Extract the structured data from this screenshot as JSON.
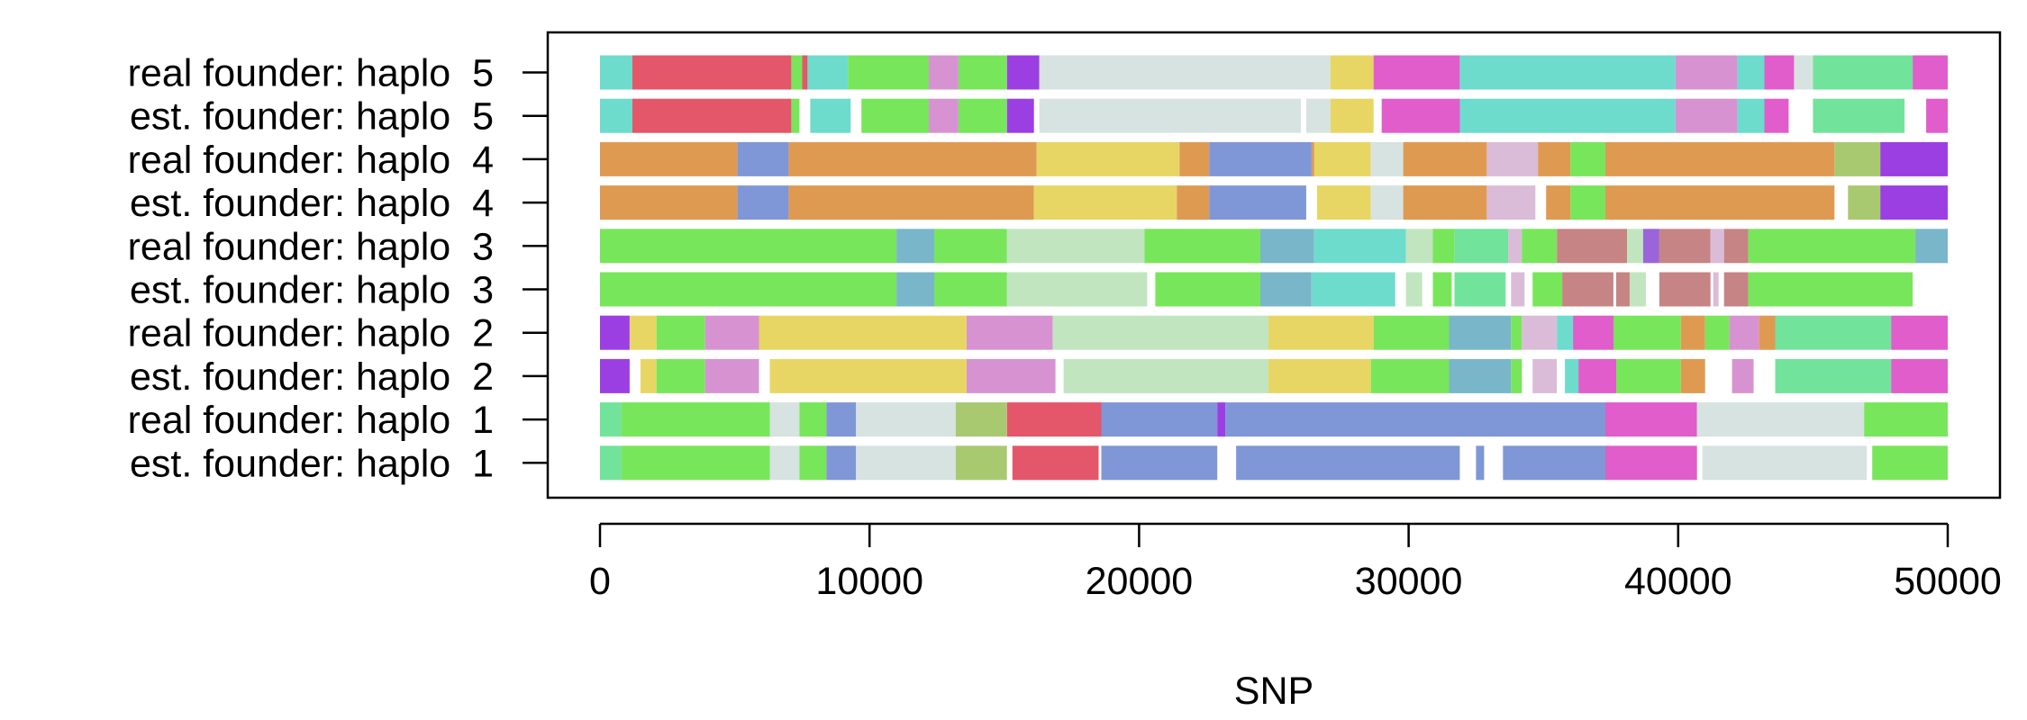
{
  "chart_data": {
    "type": "bar",
    "xlabel": "SNP",
    "xlim": [
      0,
      50000
    ],
    "xticks": [
      "0",
      "10000",
      "20000",
      "30000",
      "40000",
      "50000"
    ],
    "grid": false,
    "rows": [
      {
        "label": "real founder: haplo  5",
        "segments": [
          [
            0,
            1200,
            "#6ddccc"
          ],
          [
            1200,
            7100,
            "#e4566a"
          ],
          [
            7100,
            7500,
            "#78e65a"
          ],
          [
            7500,
            7700,
            "#e4566a"
          ],
          [
            7700,
            9200,
            "#6ddccc"
          ],
          [
            9200,
            12200,
            "#78e65a"
          ],
          [
            12200,
            13300,
            "#d793d1"
          ],
          [
            13300,
            15100,
            "#78e65a"
          ],
          [
            15100,
            16300,
            "#9b3fe3"
          ],
          [
            16300,
            27100,
            "#d6e3e0"
          ],
          [
            27100,
            28700,
            "#e8d664"
          ],
          [
            28700,
            31900,
            "#e05dcb"
          ],
          [
            31900,
            39900,
            "#6ddccc"
          ],
          [
            39900,
            42200,
            "#d793d1"
          ],
          [
            42200,
            43200,
            "#6ddccc"
          ],
          [
            43200,
            44300,
            "#e05dcb"
          ],
          [
            44300,
            45000,
            "#d6e3e0"
          ],
          [
            45000,
            48700,
            "#72e39b"
          ],
          [
            48700,
            50000,
            "#e05dcb"
          ]
        ]
      },
      {
        "label": "est. founder: haplo  5",
        "segments": [
          [
            0,
            1200,
            "#6ddccc"
          ],
          [
            1200,
            7100,
            "#e4566a"
          ],
          [
            7100,
            7400,
            "#78e65a"
          ],
          [
            7800,
            9300,
            "#6ddccc"
          ],
          [
            9700,
            12200,
            "#78e65a"
          ],
          [
            12200,
            13300,
            "#d793d1"
          ],
          [
            13300,
            15100,
            "#78e65a"
          ],
          [
            15100,
            16100,
            "#9b3fe3"
          ],
          [
            16300,
            26000,
            "#d6e3e0"
          ],
          [
            26200,
            27100,
            "#d6e3e0"
          ],
          [
            27100,
            28700,
            "#e8d664"
          ],
          [
            29000,
            31900,
            "#e05dcb"
          ],
          [
            31900,
            39900,
            "#6ddccc"
          ],
          [
            39900,
            42200,
            "#d793d1"
          ],
          [
            42200,
            43200,
            "#6ddccc"
          ],
          [
            43200,
            44100,
            "#e05dcb"
          ],
          [
            45000,
            48400,
            "#72e39b"
          ],
          [
            49200,
            50000,
            "#e05dcb"
          ]
        ]
      },
      {
        "label": "real founder: haplo  4",
        "segments": [
          [
            0,
            5100,
            "#df9a52"
          ],
          [
            5100,
            7000,
            "#7f97d6"
          ],
          [
            7000,
            16200,
            "#df9a52"
          ],
          [
            16200,
            21500,
            "#e8d664"
          ],
          [
            21500,
            22600,
            "#df9a52"
          ],
          [
            22600,
            26400,
            "#7f97d6"
          ],
          [
            26400,
            26500,
            "#df9a52"
          ],
          [
            26500,
            28600,
            "#e8d664"
          ],
          [
            28600,
            29800,
            "#d6e3e0"
          ],
          [
            29800,
            32900,
            "#df9a52"
          ],
          [
            32900,
            34800,
            "#dbbcd8"
          ],
          [
            34800,
            36000,
            "#df9a52"
          ],
          [
            36000,
            37300,
            "#78e65a"
          ],
          [
            37300,
            45800,
            "#df9a52"
          ],
          [
            45800,
            47500,
            "#a9c970"
          ],
          [
            47500,
            50000,
            "#9b3fe3"
          ]
        ]
      },
      {
        "label": "est. founder: haplo  4",
        "segments": [
          [
            0,
            5100,
            "#df9a52"
          ],
          [
            5100,
            7000,
            "#7f97d6"
          ],
          [
            7000,
            16100,
            "#df9a52"
          ],
          [
            16100,
            21400,
            "#e8d664"
          ],
          [
            21400,
            22600,
            "#df9a52"
          ],
          [
            22600,
            26200,
            "#7f97d6"
          ],
          [
            26600,
            28600,
            "#e8d664"
          ],
          [
            28600,
            29800,
            "#d6e3e0"
          ],
          [
            29800,
            32900,
            "#df9a52"
          ],
          [
            32900,
            34700,
            "#dbbcd8"
          ],
          [
            35100,
            36000,
            "#df9a52"
          ],
          [
            36000,
            37300,
            "#78e65a"
          ],
          [
            37300,
            45800,
            "#df9a52"
          ],
          [
            46300,
            47500,
            "#a9c970"
          ],
          [
            47500,
            50000,
            "#9b3fe3"
          ]
        ]
      },
      {
        "label": "real founder: haplo  3",
        "segments": [
          [
            0,
            11000,
            "#78e65a"
          ],
          [
            11000,
            12400,
            "#79b6c9"
          ],
          [
            12400,
            15100,
            "#78e65a"
          ],
          [
            15100,
            20200,
            "#c1e6bf"
          ],
          [
            20200,
            24500,
            "#78e65a"
          ],
          [
            24500,
            26500,
            "#79b6c9"
          ],
          [
            26500,
            29900,
            "#6ddccc"
          ],
          [
            29900,
            30900,
            "#c1e6bf"
          ],
          [
            30900,
            31700,
            "#78e65a"
          ],
          [
            31700,
            33700,
            "#72e39b"
          ],
          [
            33700,
            34200,
            "#dbbcd8"
          ],
          [
            34200,
            35500,
            "#78e65a"
          ],
          [
            35500,
            38100,
            "#c68484"
          ],
          [
            38100,
            38700,
            "#c1e6bf"
          ],
          [
            38700,
            39300,
            "#9a64da"
          ],
          [
            39300,
            41200,
            "#c68484"
          ],
          [
            41200,
            41700,
            "#dbbcd8"
          ],
          [
            41700,
            42600,
            "#c68484"
          ],
          [
            42600,
            48800,
            "#78e65a"
          ],
          [
            48800,
            50000,
            "#79b6c9"
          ]
        ]
      },
      {
        "label": "est. founder: haplo  3",
        "segments": [
          [
            0,
            11000,
            "#78e65a"
          ],
          [
            11000,
            12400,
            "#79b6c9"
          ],
          [
            12400,
            15100,
            "#78e65a"
          ],
          [
            15100,
            20300,
            "#c1e6bf"
          ],
          [
            20600,
            24500,
            "#78e65a"
          ],
          [
            24500,
            26400,
            "#79b6c9"
          ],
          [
            26400,
            29500,
            "#6ddccc"
          ],
          [
            29900,
            30500,
            "#c1e6bf"
          ],
          [
            30900,
            31600,
            "#78e65a"
          ],
          [
            31700,
            33600,
            "#72e39b"
          ],
          [
            33800,
            34300,
            "#dbbcd8"
          ],
          [
            34600,
            35700,
            "#78e65a"
          ],
          [
            35700,
            37600,
            "#c68484"
          ],
          [
            37700,
            38200,
            "#c68484"
          ],
          [
            38200,
            38800,
            "#c1e6bf"
          ],
          [
            39300,
            41200,
            "#c68484"
          ],
          [
            41300,
            41500,
            "#dbbcd8"
          ],
          [
            41700,
            42600,
            "#c68484"
          ],
          [
            42600,
            48700,
            "#78e65a"
          ]
        ]
      },
      {
        "label": "real founder: haplo  2",
        "segments": [
          [
            0,
            1100,
            "#9b3fe3"
          ],
          [
            1100,
            2100,
            "#e8d664"
          ],
          [
            2100,
            3900,
            "#78e65a"
          ],
          [
            3900,
            5900,
            "#d793d1"
          ],
          [
            5900,
            13600,
            "#e8d664"
          ],
          [
            13600,
            16800,
            "#d793d1"
          ],
          [
            16800,
            24800,
            "#c1e6bf"
          ],
          [
            24800,
            28700,
            "#e8d664"
          ],
          [
            28700,
            31500,
            "#78e65a"
          ],
          [
            31500,
            33800,
            "#79b6c9"
          ],
          [
            33800,
            34200,
            "#78e65a"
          ],
          [
            34200,
            35500,
            "#dbbcd8"
          ],
          [
            35500,
            36100,
            "#6ddccc"
          ],
          [
            36100,
            37600,
            "#e05dcb"
          ],
          [
            37600,
            40100,
            "#78e65a"
          ],
          [
            40100,
            41000,
            "#df9a52"
          ],
          [
            41000,
            41900,
            "#78e65a"
          ],
          [
            41900,
            43000,
            "#d793d1"
          ],
          [
            43000,
            43600,
            "#df9a52"
          ],
          [
            43600,
            47900,
            "#72e39b"
          ],
          [
            47900,
            50000,
            "#e05dcb"
          ]
        ]
      },
      {
        "label": "est. founder: haplo  2",
        "segments": [
          [
            0,
            1100,
            "#9b3fe3"
          ],
          [
            1500,
            2100,
            "#e8d664"
          ],
          [
            2100,
            3900,
            "#78e65a"
          ],
          [
            3900,
            5900,
            "#d793d1"
          ],
          [
            6300,
            13600,
            "#e8d664"
          ],
          [
            13600,
            16900,
            "#d793d1"
          ],
          [
            17200,
            24800,
            "#c1e6bf"
          ],
          [
            24800,
            28600,
            "#e8d664"
          ],
          [
            28600,
            31500,
            "#78e65a"
          ],
          [
            31500,
            33800,
            "#79b6c9"
          ],
          [
            33800,
            34200,
            "#78e65a"
          ],
          [
            34600,
            35500,
            "#dbbcd8"
          ],
          [
            35800,
            36300,
            "#6ddccc"
          ],
          [
            36300,
            37700,
            "#e05dcb"
          ],
          [
            37700,
            40100,
            "#78e65a"
          ],
          [
            40100,
            41000,
            "#df9a52"
          ],
          [
            42000,
            42800,
            "#d793d1"
          ],
          [
            43600,
            47900,
            "#72e39b"
          ],
          [
            47900,
            50000,
            "#e05dcb"
          ]
        ]
      },
      {
        "label": "real founder: haplo  1",
        "segments": [
          [
            0,
            800,
            "#72e39b"
          ],
          [
            800,
            6300,
            "#78e65a"
          ],
          [
            6300,
            7400,
            "#d6e3e0"
          ],
          [
            7400,
            8400,
            "#78e65a"
          ],
          [
            8400,
            9500,
            "#7f97d6"
          ],
          [
            9500,
            13200,
            "#d6e3e0"
          ],
          [
            13200,
            15100,
            "#a9c970"
          ],
          [
            15100,
            18600,
            "#e4566a"
          ],
          [
            18600,
            22900,
            "#7f97d6"
          ],
          [
            22900,
            23200,
            "#9b3fe3"
          ],
          [
            23200,
            37300,
            "#7f97d6"
          ],
          [
            37300,
            40700,
            "#e05dcb"
          ],
          [
            40700,
            46900,
            "#d6e3e0"
          ],
          [
            46900,
            50000,
            "#78e65a"
          ]
        ]
      },
      {
        "label": "est. founder: haplo  1",
        "segments": [
          [
            0,
            800,
            "#72e39b"
          ],
          [
            800,
            6300,
            "#78e65a"
          ],
          [
            6300,
            7400,
            "#d6e3e0"
          ],
          [
            7400,
            8400,
            "#78e65a"
          ],
          [
            8400,
            9500,
            "#7f97d6"
          ],
          [
            9500,
            13200,
            "#d6e3e0"
          ],
          [
            13200,
            15100,
            "#a9c970"
          ],
          [
            15300,
            18500,
            "#e4566a"
          ],
          [
            18600,
            22900,
            "#7f97d6"
          ],
          [
            23600,
            31900,
            "#7f97d6"
          ],
          [
            32500,
            32800,
            "#7f97d6"
          ],
          [
            33500,
            37300,
            "#7f97d6"
          ],
          [
            37300,
            40700,
            "#e05dcb"
          ],
          [
            40900,
            47000,
            "#d6e3e0"
          ],
          [
            47200,
            50000,
            "#78e65a"
          ]
        ]
      }
    ]
  }
}
